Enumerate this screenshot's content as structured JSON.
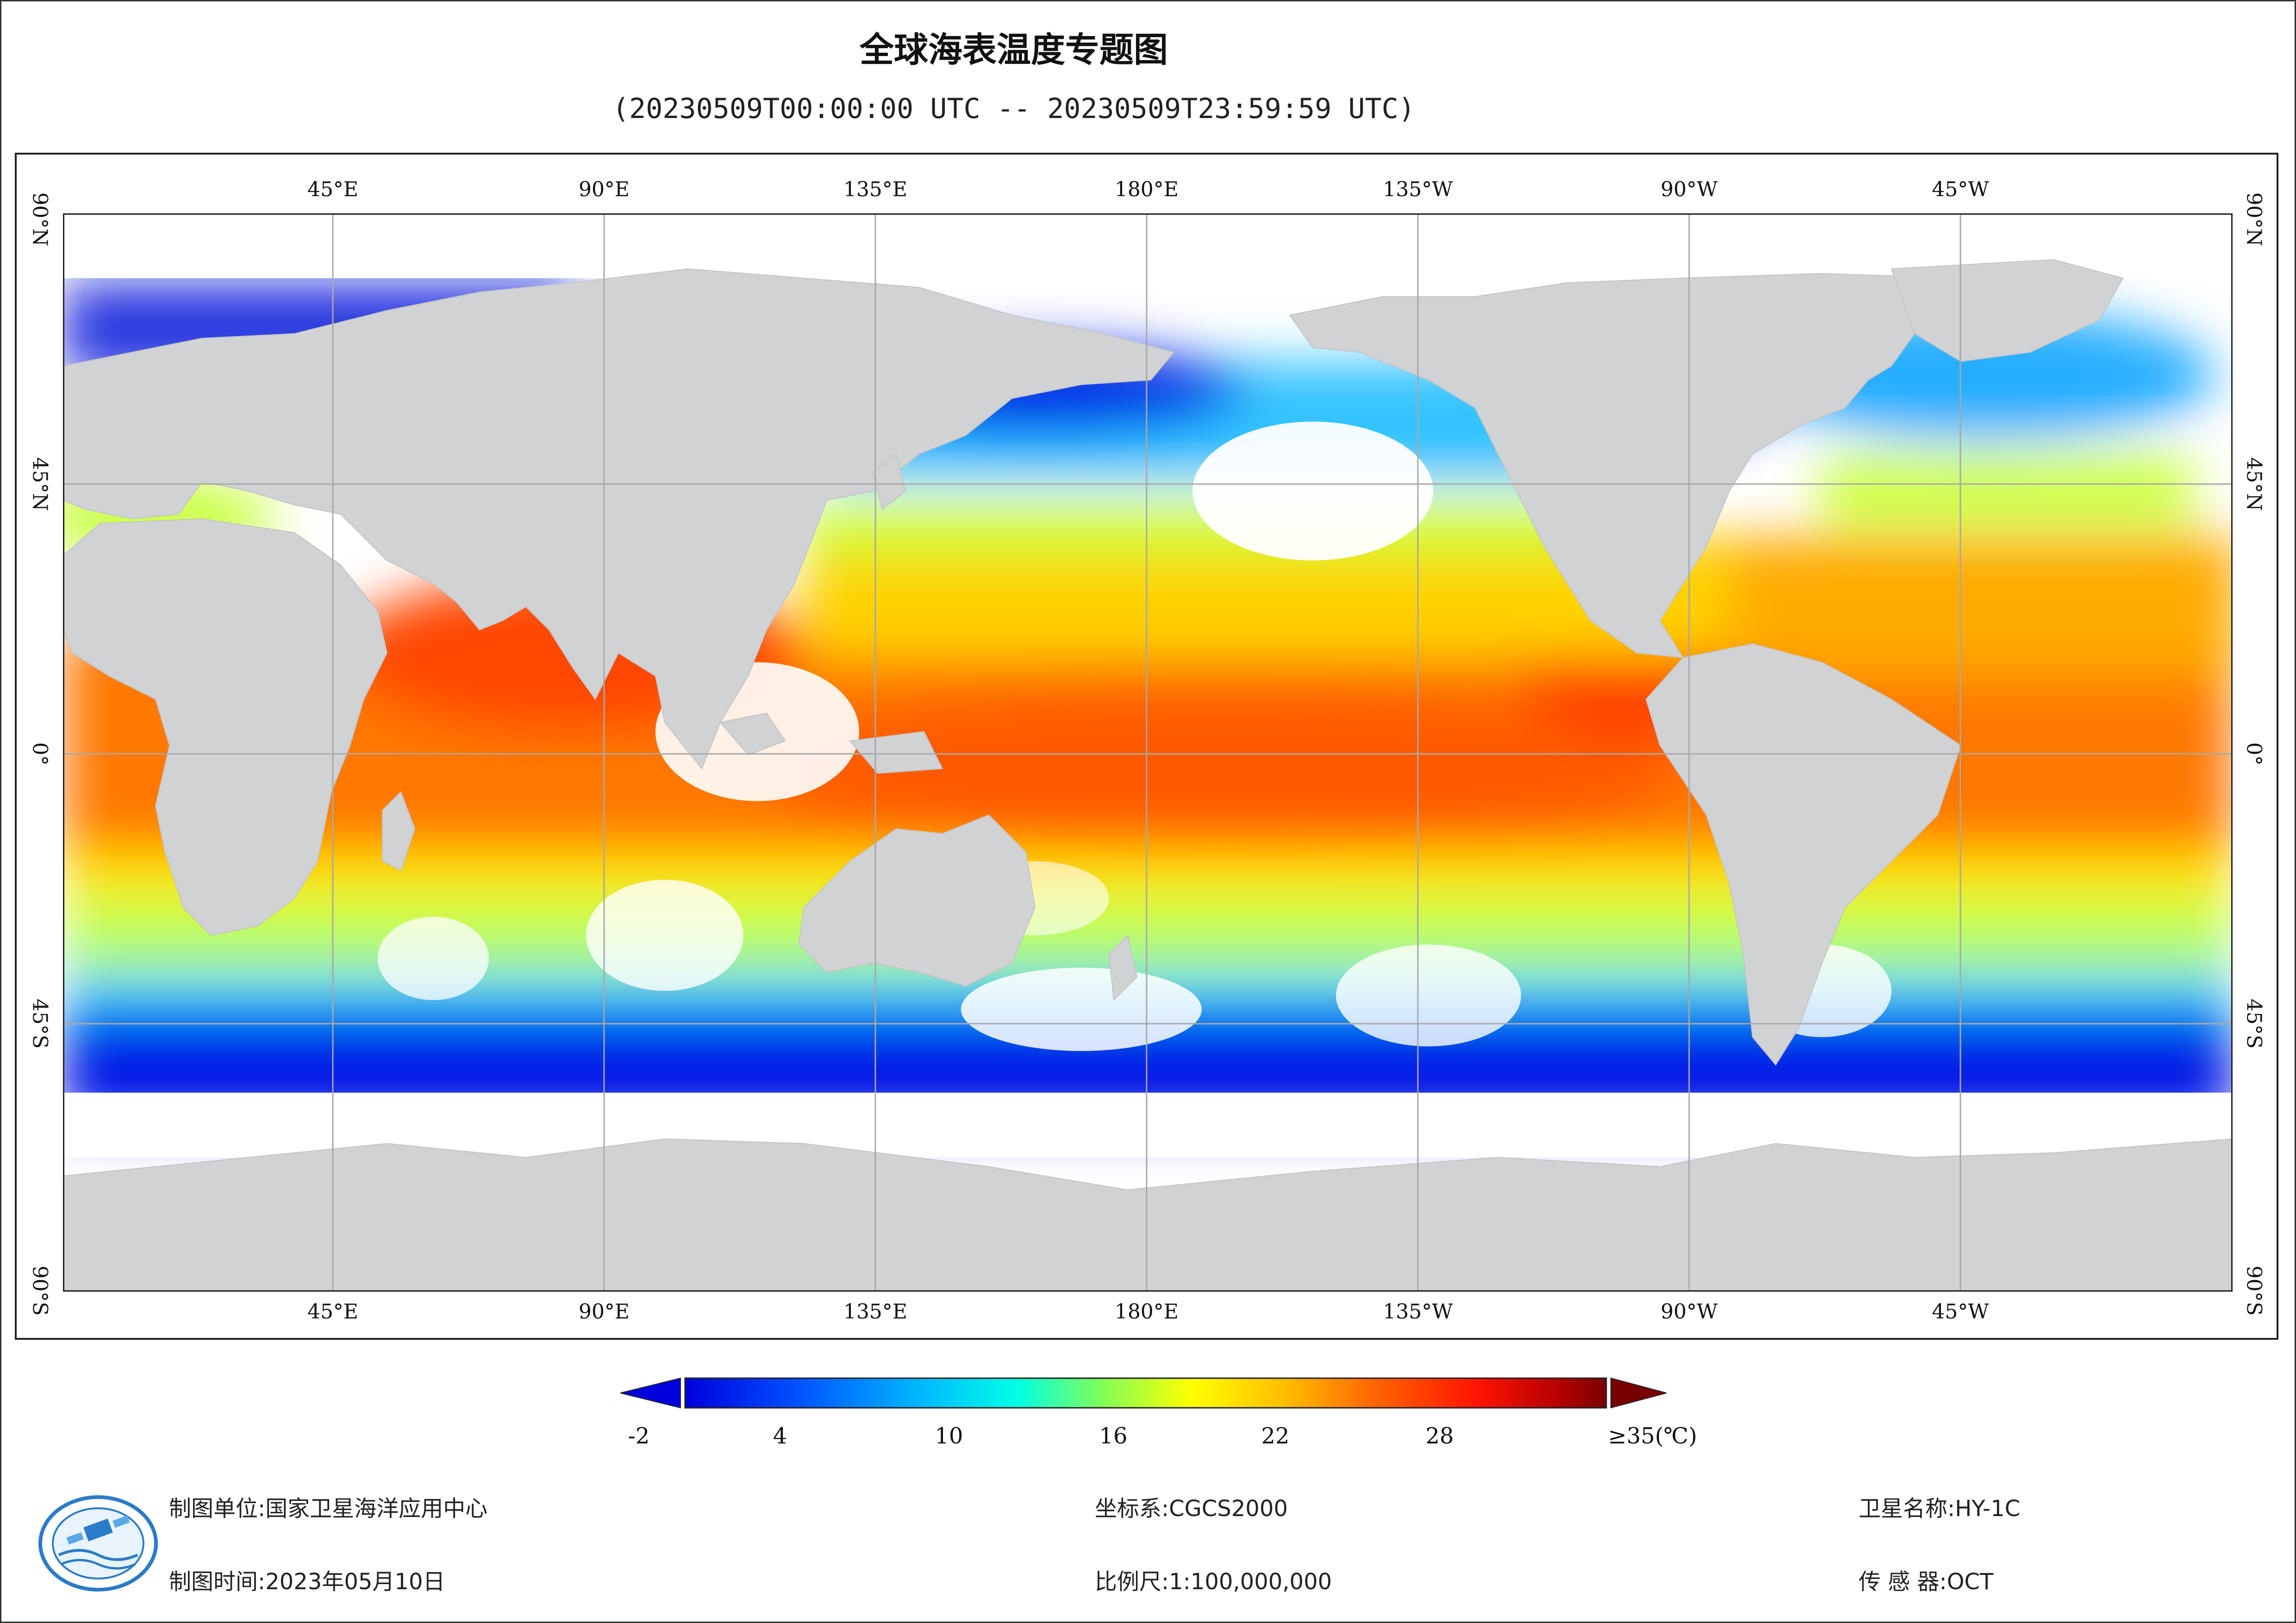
{
  "title": "全球海表温度专题图",
  "subtitle": "(20230509T00:00:00 UTC -- 20230509T23:59:59 UTC)",
  "map": {
    "lon_ticks": [
      "45°E",
      "90°E",
      "135°E",
      "180°E",
      "135°W",
      "90°W",
      "45°W"
    ],
    "lat_ticks": [
      "90°N",
      "45°N",
      "0°",
      "45°S",
      "90°S"
    ],
    "colors": {
      "land": "#d1d2d4",
      "no_data": "#ffffff",
      "grid": "#a8a8a8"
    }
  },
  "legend": {
    "labels": [
      "-2",
      "4",
      "10",
      "16",
      "22",
      "28",
      "≥35(℃)"
    ],
    "min": -2,
    "max": 35,
    "colors": [
      "#0000dc",
      "#0050ff",
      "#00b4ff",
      "#00ffe6",
      "#7dff5a",
      "#ffff00",
      "#ffbe00",
      "#ff6400",
      "#ff1400",
      "#b40000",
      "#7a0000"
    ]
  },
  "info": {
    "org_label": "制图单位:",
    "org": "国家卫星海洋应用中心",
    "time_label": "制图时间:",
    "time": "2023年05月10日",
    "crs_label": "坐标系:",
    "crs": "CGCS2000",
    "scale_label": "比例尺:",
    "scale": "1:100,000,000",
    "sat_label": "卫星名称:",
    "sat": "HY-1C",
    "sensor_label": "传 感 器:",
    "sensor": "OCT"
  }
}
